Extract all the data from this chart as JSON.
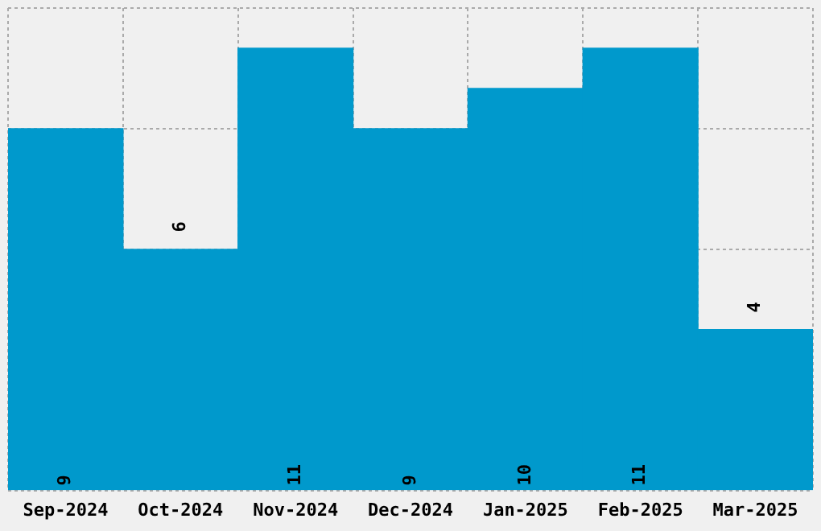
{
  "chart_data": {
    "type": "bar",
    "categories": [
      "Sep-2024",
      "Oct-2024",
      "Nov-2024",
      "Dec-2024",
      "Jan-2025",
      "Feb-2025",
      "Mar-2025"
    ],
    "values": [
      9,
      6,
      11,
      9,
      10,
      11,
      4
    ],
    "color": "#0099cc",
    "ylim": [
      0,
      12
    ],
    "grid": true,
    "tick_labels": "x",
    "data_labels": true
  }
}
